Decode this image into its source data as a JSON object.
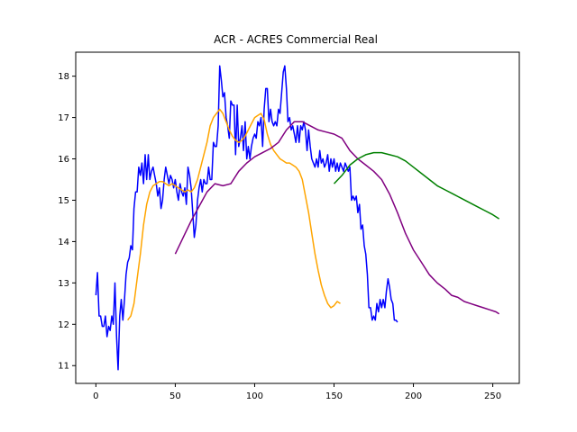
{
  "chart_data": {
    "type": "line",
    "title": "ACR - ACRES Commercial Real",
    "xlabel": "",
    "ylabel": "",
    "xlim": [
      -12.7,
      266.7
    ],
    "ylim": [
      10.57,
      18.58
    ],
    "x_ticks": [
      0,
      50,
      100,
      150,
      200,
      250
    ],
    "y_ticks": [
      11,
      12,
      13,
      14,
      15,
      16,
      17,
      18
    ],
    "grid": false,
    "series": [
      {
        "color": "#0000ff",
        "points": [
          [
            0,
            12.7
          ],
          [
            1,
            13.25
          ],
          [
            2,
            12.2
          ],
          [
            3,
            12.2
          ],
          [
            4,
            11.95
          ],
          [
            5,
            11.95
          ],
          [
            6,
            12.2
          ],
          [
            7,
            11.7
          ],
          [
            8,
            11.95
          ],
          [
            9,
            11.85
          ],
          [
            10,
            12.2
          ],
          [
            11,
            12.0
          ],
          [
            12,
            13.0
          ],
          [
            13,
            11.7
          ],
          [
            14,
            10.9
          ],
          [
            15,
            12.2
          ],
          [
            16,
            12.6
          ],
          [
            17,
            12.1
          ],
          [
            18,
            12.6
          ],
          [
            19,
            13.2
          ],
          [
            20,
            13.5
          ],
          [
            21,
            13.6
          ],
          [
            22,
            13.9
          ],
          [
            23,
            13.8
          ],
          [
            24,
            14.8
          ],
          [
            25,
            15.2
          ],
          [
            26,
            15.2
          ],
          [
            27,
            15.8
          ],
          [
            28,
            15.6
          ],
          [
            29,
            15.9
          ],
          [
            30,
            15.4
          ],
          [
            31,
            16.1
          ],
          [
            32,
            15.5
          ],
          [
            33,
            16.1
          ],
          [
            34,
            15.5
          ],
          [
            35,
            15.7
          ],
          [
            36,
            15.8
          ],
          [
            37,
            15.6
          ],
          [
            38,
            15.4
          ],
          [
            39,
            15.1
          ],
          [
            40,
            15.3
          ],
          [
            41,
            14.8
          ],
          [
            42,
            15.0
          ],
          [
            43,
            15.5
          ],
          [
            44,
            15.8
          ],
          [
            45,
            15.6
          ],
          [
            46,
            15.4
          ],
          [
            47,
            15.6
          ],
          [
            48,
            15.5
          ],
          [
            49,
            15.3
          ],
          [
            50,
            15.5
          ],
          [
            51,
            15.2
          ],
          [
            52,
            15.0
          ],
          [
            53,
            15.4
          ],
          [
            54,
            15.2
          ],
          [
            55,
            15.1
          ],
          [
            56,
            15.3
          ],
          [
            57,
            14.9
          ],
          [
            58,
            15.8
          ],
          [
            59,
            15.6
          ],
          [
            60,
            15.3
          ],
          [
            61,
            14.7
          ],
          [
            62,
            14.1
          ],
          [
            63,
            14.4
          ],
          [
            64,
            15.0
          ],
          [
            65,
            15.3
          ],
          [
            66,
            15.5
          ],
          [
            67,
            15.2
          ],
          [
            68,
            15.5
          ],
          [
            69,
            15.4
          ],
          [
            70,
            15.4
          ],
          [
            71,
            15.8
          ],
          [
            72,
            15.5
          ],
          [
            73,
            15.5
          ],
          [
            74,
            16.4
          ],
          [
            75,
            16.3
          ],
          [
            76,
            16.3
          ],
          [
            77,
            16.8
          ],
          [
            78,
            18.25
          ],
          [
            79,
            17.9
          ],
          [
            80,
            17.5
          ],
          [
            81,
            17.6
          ],
          [
            82,
            17.0
          ],
          [
            83,
            16.8
          ],
          [
            84,
            16.5
          ],
          [
            85,
            17.4
          ],
          [
            86,
            17.3
          ],
          [
            87,
            17.3
          ],
          [
            88,
            16.1
          ],
          [
            89,
            17.3
          ],
          [
            90,
            16.3
          ],
          [
            91,
            16.5
          ],
          [
            92,
            16.8
          ],
          [
            93,
            16.2
          ],
          [
            94,
            16.9
          ],
          [
            95,
            16.0
          ],
          [
            96,
            16.3
          ],
          [
            97,
            16.0
          ],
          [
            98,
            16.3
          ],
          [
            99,
            16.5
          ],
          [
            100,
            16.6
          ],
          [
            101,
            16.5
          ],
          [
            102,
            16.9
          ],
          [
            103,
            16.8
          ],
          [
            104,
            17.0
          ],
          [
            105,
            16.3
          ],
          [
            106,
            17.2
          ],
          [
            107,
            17.7
          ],
          [
            108,
            17.7
          ],
          [
            109,
            16.9
          ],
          [
            110,
            17.2
          ],
          [
            111,
            16.9
          ],
          [
            112,
            16.8
          ],
          [
            113,
            16.9
          ],
          [
            114,
            16.8
          ],
          [
            115,
            17.2
          ],
          [
            116,
            17.1
          ],
          [
            117,
            17.6
          ],
          [
            118,
            18.1
          ],
          [
            119,
            18.25
          ],
          [
            120,
            17.7
          ],
          [
            121,
            16.9
          ],
          [
            122,
            17.0
          ],
          [
            123,
            16.7
          ],
          [
            124,
            16.8
          ],
          [
            125,
            16.6
          ],
          [
            126,
            16.4
          ],
          [
            127,
            16.8
          ],
          [
            128,
            16.4
          ],
          [
            129,
            16.8
          ],
          [
            130,
            16.7
          ],
          [
            131,
            16.9
          ],
          [
            132,
            16.7
          ],
          [
            133,
            16.2
          ],
          [
            134,
            16.7
          ],
          [
            135,
            16.3
          ],
          [
            136,
            16.0
          ],
          [
            137,
            15.9
          ],
          [
            138,
            15.8
          ],
          [
            139,
            16.0
          ],
          [
            140,
            15.8
          ],
          [
            141,
            16.2
          ],
          [
            142,
            15.9
          ],
          [
            143,
            16.0
          ],
          [
            144,
            15.8
          ],
          [
            145,
            15.9
          ],
          [
            146,
            16.1
          ],
          [
            147,
            15.7
          ],
          [
            148,
            16.0
          ],
          [
            149,
            15.8
          ],
          [
            150,
            16.0
          ],
          [
            151,
            15.7
          ],
          [
            152,
            15.9
          ],
          [
            153,
            15.7
          ],
          [
            154,
            15.9
          ],
          [
            155,
            15.8
          ],
          [
            156,
            15.7
          ],
          [
            157,
            15.9
          ],
          [
            158,
            15.8
          ],
          [
            159,
            15.7
          ],
          [
            160,
            15.8
          ],
          [
            161,
            15.0
          ],
          [
            162,
            15.1
          ],
          [
            163,
            15.0
          ],
          [
            164,
            15.1
          ],
          [
            165,
            14.7
          ],
          [
            166,
            14.9
          ],
          [
            167,
            14.3
          ],
          [
            168,
            14.4
          ],
          [
            169,
            13.9
          ],
          [
            170,
            13.7
          ],
          [
            171,
            13.2
          ],
          [
            172,
            12.4
          ],
          [
            173,
            12.4
          ],
          [
            174,
            12.1
          ],
          [
            175,
            12.2
          ],
          [
            176,
            12.1
          ],
          [
            177,
            12.5
          ],
          [
            178,
            12.3
          ],
          [
            179,
            12.6
          ],
          [
            180,
            12.4
          ],
          [
            181,
            12.6
          ],
          [
            182,
            12.4
          ],
          [
            183,
            12.8
          ],
          [
            184,
            13.1
          ],
          [
            185,
            12.9
          ],
          [
            186,
            12.6
          ],
          [
            187,
            12.5
          ],
          [
            188,
            12.1
          ],
          [
            189,
            12.1
          ],
          [
            190,
            12.05
          ]
        ]
      },
      {
        "color": "#ffa500",
        "points": [
          [
            20,
            12.1
          ],
          [
            22,
            12.2
          ],
          [
            24,
            12.5
          ],
          [
            26,
            13.1
          ],
          [
            28,
            13.7
          ],
          [
            30,
            14.4
          ],
          [
            32,
            14.9
          ],
          [
            34,
            15.2
          ],
          [
            36,
            15.35
          ],
          [
            38,
            15.4
          ],
          [
            40,
            15.45
          ],
          [
            42,
            15.45
          ],
          [
            44,
            15.4
          ],
          [
            46,
            15.35
          ],
          [
            48,
            15.4
          ],
          [
            50,
            15.35
          ],
          [
            52,
            15.3
          ],
          [
            54,
            15.25
          ],
          [
            56,
            15.2
          ],
          [
            58,
            15.25
          ],
          [
            60,
            15.2
          ],
          [
            62,
            15.3
          ],
          [
            64,
            15.5
          ],
          [
            66,
            15.8
          ],
          [
            68,
            16.1
          ],
          [
            70,
            16.4
          ],
          [
            72,
            16.8
          ],
          [
            74,
            17.0
          ],
          [
            76,
            17.1
          ],
          [
            78,
            17.2
          ],
          [
            80,
            17.1
          ],
          [
            82,
            16.9
          ],
          [
            84,
            16.7
          ],
          [
            86,
            16.55
          ],
          [
            88,
            16.45
          ],
          [
            90,
            16.4
          ],
          [
            92,
            16.45
          ],
          [
            94,
            16.55
          ],
          [
            96,
            16.7
          ],
          [
            98,
            16.85
          ],
          [
            100,
            17.0
          ],
          [
            102,
            17.05
          ],
          [
            104,
            17.1
          ],
          [
            106,
            16.95
          ],
          [
            108,
            16.6
          ],
          [
            110,
            16.35
          ],
          [
            112,
            16.2
          ],
          [
            114,
            16.1
          ],
          [
            116,
            16.0
          ],
          [
            118,
            15.95
          ],
          [
            120,
            15.9
          ],
          [
            122,
            15.9
          ],
          [
            124,
            15.85
          ],
          [
            126,
            15.8
          ],
          [
            128,
            15.7
          ],
          [
            130,
            15.5
          ],
          [
            132,
            15.1
          ],
          [
            134,
            14.7
          ],
          [
            136,
            14.2
          ],
          [
            138,
            13.7
          ],
          [
            140,
            13.3
          ],
          [
            142,
            12.95
          ],
          [
            144,
            12.7
          ],
          [
            146,
            12.5
          ],
          [
            148,
            12.4
          ],
          [
            150,
            12.45
          ],
          [
            152,
            12.55
          ],
          [
            154,
            12.5
          ]
        ]
      },
      {
        "color": "#800080",
        "points": [
          [
            50,
            13.7
          ],
          [
            55,
            14.1
          ],
          [
            60,
            14.5
          ],
          [
            65,
            14.85
          ],
          [
            70,
            15.2
          ],
          [
            75,
            15.4
          ],
          [
            80,
            15.35
          ],
          [
            85,
            15.4
          ],
          [
            90,
            15.7
          ],
          [
            95,
            15.9
          ],
          [
            100,
            16.05
          ],
          [
            105,
            16.15
          ],
          [
            110,
            16.25
          ],
          [
            115,
            16.4
          ],
          [
            120,
            16.7
          ],
          [
            125,
            16.9
          ],
          [
            130,
            16.9
          ],
          [
            135,
            16.8
          ],
          [
            140,
            16.7
          ],
          [
            145,
            16.65
          ],
          [
            150,
            16.6
          ],
          [
            155,
            16.5
          ],
          [
            160,
            16.2
          ],
          [
            165,
            16.0
          ],
          [
            170,
            15.85
          ],
          [
            175,
            15.7
          ],
          [
            180,
            15.5
          ],
          [
            185,
            15.15
          ],
          [
            190,
            14.7
          ],
          [
            195,
            14.2
          ],
          [
            200,
            13.8
          ],
          [
            205,
            13.5
          ],
          [
            210,
            13.2
          ],
          [
            215,
            13.0
          ],
          [
            220,
            12.85
          ],
          [
            224,
            12.7
          ],
          [
            228,
            12.65
          ],
          [
            232,
            12.55
          ],
          [
            236,
            12.5
          ],
          [
            240,
            12.45
          ],
          [
            244,
            12.4
          ],
          [
            248,
            12.35
          ],
          [
            252,
            12.3
          ],
          [
            254,
            12.25
          ]
        ]
      },
      {
        "color": "#008000",
        "points": [
          [
            150,
            15.4
          ],
          [
            155,
            15.6
          ],
          [
            160,
            15.85
          ],
          [
            165,
            16.0
          ],
          [
            170,
            16.1
          ],
          [
            175,
            16.15
          ],
          [
            180,
            16.15
          ],
          [
            185,
            16.1
          ],
          [
            190,
            16.05
          ],
          [
            195,
            15.95
          ],
          [
            200,
            15.8
          ],
          [
            205,
            15.65
          ],
          [
            210,
            15.5
          ],
          [
            215,
            15.35
          ],
          [
            220,
            15.25
          ],
          [
            225,
            15.15
          ],
          [
            230,
            15.05
          ],
          [
            235,
            14.95
          ],
          [
            240,
            14.85
          ],
          [
            245,
            14.75
          ],
          [
            250,
            14.65
          ],
          [
            254,
            14.55
          ]
        ]
      }
    ]
  }
}
